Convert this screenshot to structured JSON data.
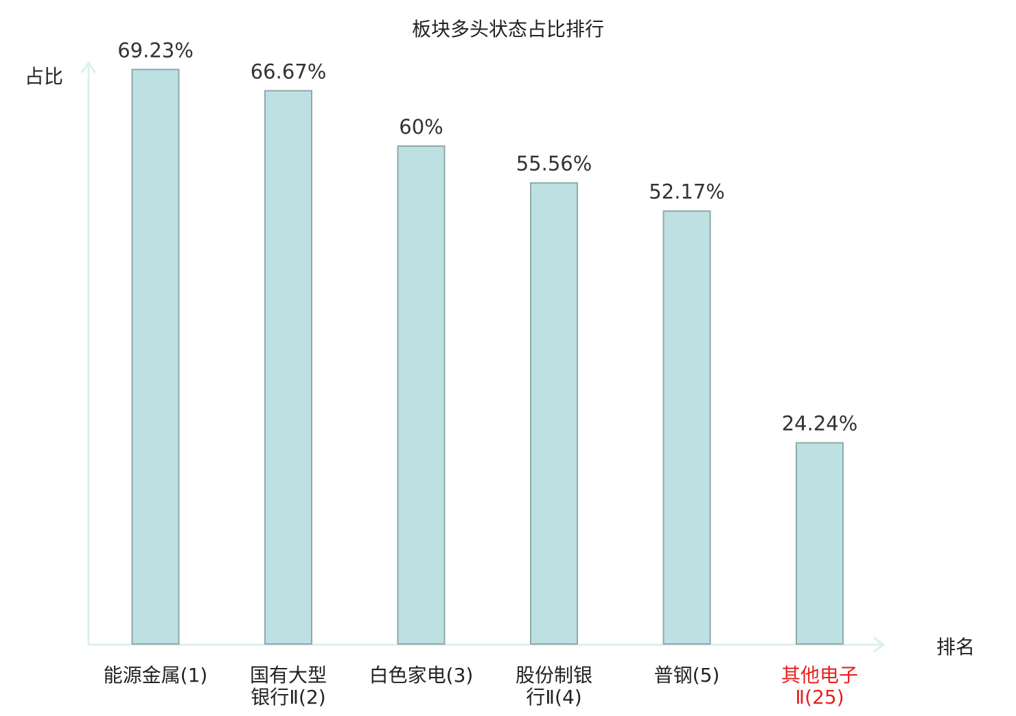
{
  "colors": {
    "bar_fill": "#bde0e3",
    "bar_stroke": "#8fa8ab",
    "axis": "#dcefee",
    "text": "#222222",
    "label_text": "#333333",
    "highlight": "#e8201c"
  },
  "chart_data": {
    "type": "bar",
    "title": "板块多头状态占比排行",
    "ylabel": "占比",
    "xlabel": "排名",
    "ylim": [
      0,
      75
    ],
    "grid": false,
    "legend": "none",
    "categories": [
      {
        "lines": [
          "能源金属(1)"
        ],
        "highlight": false
      },
      {
        "lines": [
          "国有大型",
          "银行Ⅱ(2)"
        ],
        "highlight": false
      },
      {
        "lines": [
          "白色家电(3)"
        ],
        "highlight": false
      },
      {
        "lines": [
          "股份制银",
          "行Ⅱ(4)"
        ],
        "highlight": false
      },
      {
        "lines": [
          "普钢(5)"
        ],
        "highlight": false
      },
      {
        "lines": [
          "其他电子",
          "Ⅱ(25)"
        ],
        "highlight": true
      }
    ],
    "values": [
      69.23,
      66.67,
      60,
      55.56,
      52.17,
      24.24
    ],
    "value_labels": [
      "69.23%",
      "66.67%",
      "60%",
      "55.56%",
      "52.17%",
      "24.24%"
    ]
  }
}
